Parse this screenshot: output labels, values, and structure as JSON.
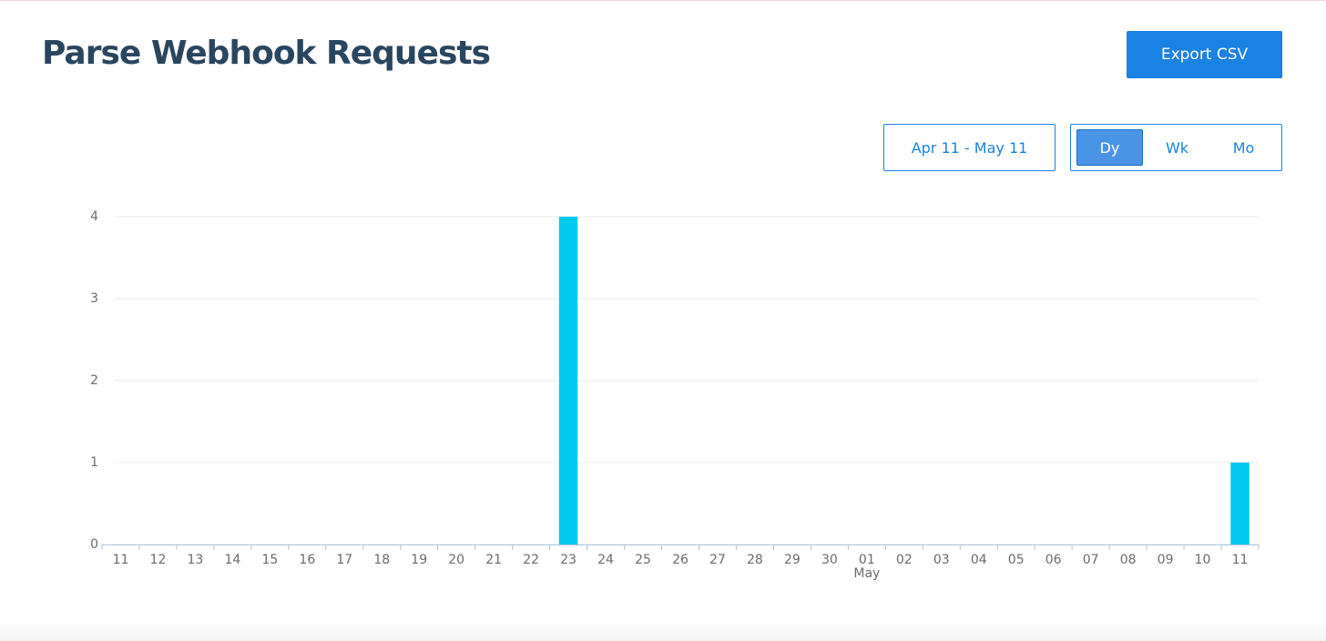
{
  "header": {
    "title": "Parse Webhook Requests",
    "export_button": "Export CSV"
  },
  "controls": {
    "date_range": "Apr 11 - May 11",
    "intervals": [
      "Dy",
      "Wk",
      "Mo"
    ],
    "selected": "Dy"
  },
  "chart_data": {
    "type": "bar",
    "categories": [
      "11",
      "12",
      "13",
      "14",
      "15",
      "16",
      "17",
      "18",
      "19",
      "20",
      "21",
      "22",
      "23",
      "24",
      "25",
      "26",
      "27",
      "28",
      "29",
      "30",
      "01",
      "02",
      "03",
      "04",
      "05",
      "06",
      "07",
      "08",
      "09",
      "10",
      "11"
    ],
    "values": [
      0,
      0,
      0,
      0,
      0,
      0,
      0,
      0,
      0,
      0,
      0,
      0,
      4,
      0,
      0,
      0,
      0,
      0,
      0,
      0,
      0,
      0,
      0,
      0,
      0,
      0,
      0,
      0,
      0,
      0,
      1
    ],
    "color": "#00c9ef",
    "ylim": [
      0,
      4
    ],
    "yticks": [
      0,
      1,
      2,
      3,
      4
    ],
    "grid": true,
    "month_labels": [
      {
        "label": "May",
        "at": 20
      }
    ]
  }
}
